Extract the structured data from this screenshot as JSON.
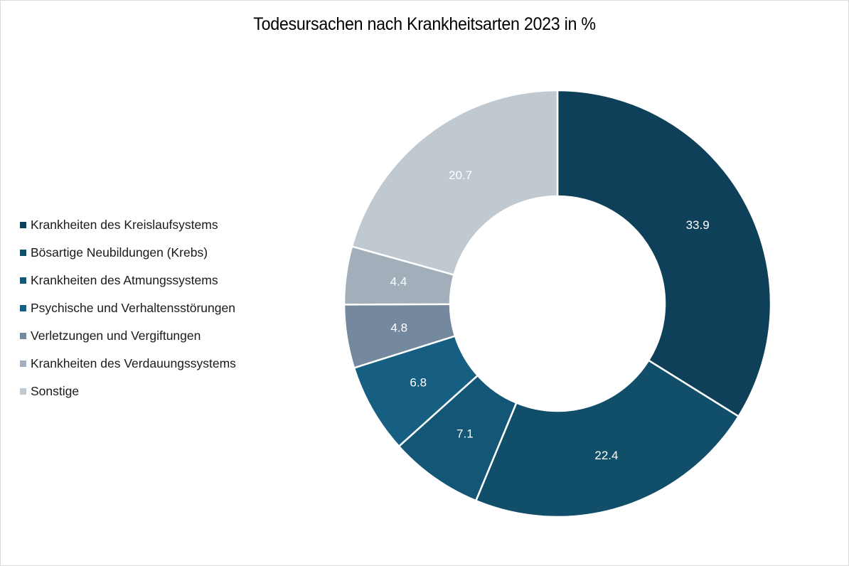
{
  "chart": {
    "title": "Todesursachen nach Krankheitsarten 2023 in %"
  },
  "legend": {
    "items": [
      {
        "label": "Krankheiten des Kreislaufsystems",
        "color": "#0e405a"
      },
      {
        "label": "Bösartige Neubildungen (Krebs)",
        "color": "#114e6a"
      },
      {
        "label": "Krankheiten des Atmungssystems",
        "color": "#135675"
      },
      {
        "label": "Psychische und Verhaltensstörungen",
        "color": "#175f82"
      },
      {
        "label": "Verletzungen und Vergiftungen",
        "color": "#74899d"
      },
      {
        "label": "Krankheiten des Verdauungssystems",
        "color": "#a2aeb9"
      },
      {
        "label": "Sonstige",
        "color": "#c0c8d0"
      }
    ]
  },
  "chart_data": {
    "type": "pie",
    "subtype": "donut",
    "title": "Todesursachen nach Krankheitsarten 2023 in %",
    "categories": [
      "Krankheiten des Kreislaufsystems",
      "Bösartige Neubildungen (Krebs)",
      "Krankheiten des Atmungssystems",
      "Psychische und Verhaltensstörungen",
      "Verletzungen und Vergiftungen",
      "Krankheiten des Verdauungssystems",
      "Sonstige"
    ],
    "values": [
      33.9,
      22.4,
      7.1,
      6.8,
      4.8,
      4.4,
      20.7
    ],
    "data_labels": [
      "33.9",
      "22.4",
      "7.1",
      "6.8",
      "4.8",
      "4.4",
      "20.7"
    ],
    "colors": [
      "#0e405a",
      "#114e6a",
      "#135675",
      "#175f82",
      "#74899d",
      "#a2aeb9",
      "#c0c8d0"
    ],
    "unit": "%",
    "start_angle_deg": 0,
    "direction": "clockwise",
    "legend_position": "left"
  }
}
